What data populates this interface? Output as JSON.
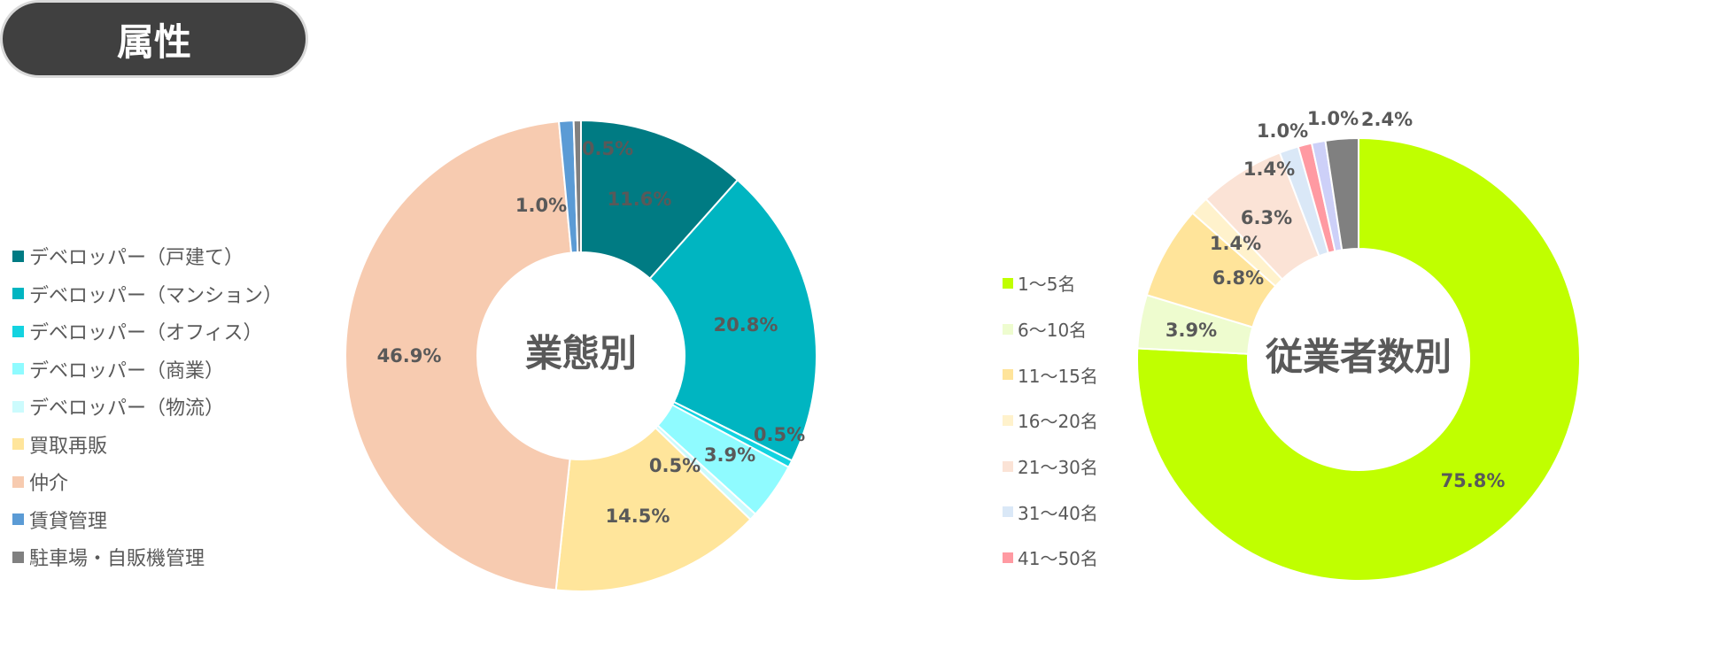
{
  "header": {
    "title": "属性"
  },
  "chart_data": [
    {
      "type": "donut",
      "title": "業態別",
      "categories": [
        "デベロッパー（戸建て）",
        "デベロッパー（マンション）",
        "デベロッパー（オフィス）",
        "デベロッパー（商業）",
        "デベロッパー（物流）",
        "買取再販",
        "仲介",
        "賃貸管理",
        "駐車場・自販機管理"
      ],
      "values": [
        11.6,
        20.8,
        0.5,
        3.9,
        0.5,
        14.5,
        46.9,
        1.0,
        0.5
      ],
      "labels": [
        "11.6%",
        "20.8%",
        "0.5%",
        "3.9%",
        "0.5%",
        "14.5%",
        "46.9%",
        "1.0%",
        "0.5%"
      ],
      "colors": [
        "#007b83",
        "#00b5c1",
        "#13d3e0",
        "#8ffbff",
        "#ccfbfd",
        "#ffe59b",
        "#f7cbb0",
        "#5b9bd5",
        "#808080"
      ],
      "legend_position": "left"
    },
    {
      "type": "donut",
      "title": "従業者数別",
      "categories": [
        "1～5名",
        "6～10名",
        "11～15名",
        "16～20名",
        "21～30名",
        "31～40名",
        "41～50名",
        "",
        ""
      ],
      "values": [
        75.8,
        3.9,
        6.8,
        1.4,
        6.3,
        1.4,
        1.0,
        1.0,
        2.4
      ],
      "labels": [
        "75.8%",
        "3.9%",
        "6.8%",
        "1.4%",
        "6.3%",
        "1.4%",
        "1.0%",
        "1.0%",
        "2.4%"
      ],
      "colors": [
        "#c0ff00",
        "#eefccf",
        "#ffe49a",
        "#fff2cc",
        "#fbe3d6",
        "#dae8f7",
        "#ff9aa2",
        "#cdd0f8",
        "#808080"
      ],
      "legend_position": "left"
    }
  ]
}
